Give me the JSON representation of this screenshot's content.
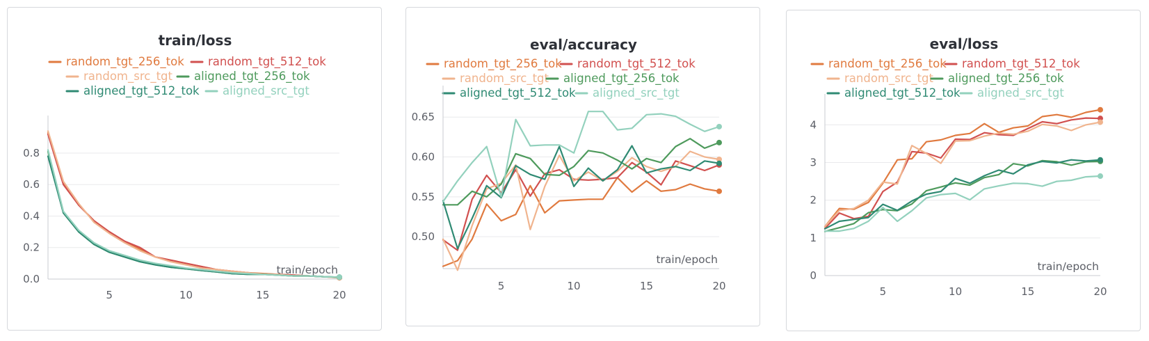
{
  "colors": {
    "random_tgt_256_tok": "#e07a3f",
    "random_tgt_512_tok": "#d1504f",
    "random_src_tgt": "#f0b48e",
    "aligned_tgt_256_tok": "#4e9a5c",
    "aligned_tgt_512_tok": "#2f8a73",
    "aligned_src_tgt": "#93d1bd"
  },
  "chart_data": [
    {
      "type": "line",
      "title": "train/loss",
      "xlabel": "train/epoch",
      "ylabel": "",
      "xlim": [
        1,
        20
      ],
      "ylim": [
        0,
        0.95
      ],
      "xticks": [
        5,
        10,
        15,
        20
      ],
      "yticks": [
        0,
        0.2,
        0.4,
        0.6,
        0.8
      ],
      "grid": true,
      "legend_position": "top",
      "x": [
        1,
        2,
        3,
        4,
        5,
        6,
        7,
        8,
        9,
        10,
        11,
        12,
        13,
        14,
        15,
        16,
        17,
        18,
        19,
        20
      ],
      "series": [
        {
          "name": "random_tgt_256_tok",
          "values": [
            0.93,
            0.61,
            0.47,
            0.37,
            0.3,
            0.24,
            0.19,
            0.14,
            0.12,
            0.1,
            0.08,
            0.06,
            0.05,
            0.04,
            0.035,
            0.03,
            0.025,
            0.02,
            0.015,
            0.008
          ]
        },
        {
          "name": "random_tgt_512_tok",
          "values": [
            0.92,
            0.6,
            0.47,
            0.37,
            0.3,
            0.24,
            0.2,
            0.14,
            0.12,
            0.1,
            0.08,
            0.06,
            0.05,
            0.04,
            0.03,
            0.03,
            0.025,
            0.02,
            0.015,
            0.01
          ]
        },
        {
          "name": "random_src_tgt",
          "values": [
            0.94,
            0.62,
            0.48,
            0.36,
            0.29,
            0.23,
            0.18,
            0.14,
            0.11,
            0.09,
            0.07,
            0.06,
            0.05,
            0.04,
            0.03,
            0.03,
            0.02,
            0.02,
            0.015,
            0.008
          ]
        },
        {
          "name": "aligned_tgt_256_tok",
          "values": [
            0.81,
            0.42,
            0.3,
            0.22,
            0.17,
            0.14,
            0.11,
            0.09,
            0.075,
            0.065,
            0.055,
            0.045,
            0.035,
            0.03,
            0.03,
            0.025,
            0.02,
            0.02,
            0.015,
            0.012
          ]
        },
        {
          "name": "aligned_tgt_512_tok",
          "values": [
            0.78,
            0.42,
            0.3,
            0.22,
            0.17,
            0.14,
            0.11,
            0.09,
            0.075,
            0.065,
            0.055,
            0.045,
            0.035,
            0.03,
            0.03,
            0.025,
            0.02,
            0.02,
            0.015,
            0.012
          ]
        },
        {
          "name": "aligned_src_tgt",
          "values": [
            0.82,
            0.43,
            0.31,
            0.23,
            0.18,
            0.15,
            0.12,
            0.1,
            0.085,
            0.07,
            0.06,
            0.05,
            0.04,
            0.035,
            0.03,
            0.025,
            0.02,
            0.02,
            0.015,
            0.012
          ]
        }
      ]
    },
    {
      "type": "line",
      "title": "eval/accuracy",
      "xlabel": "train/epoch",
      "ylabel": "",
      "xlim": [
        1,
        20
      ],
      "ylim": [
        0.46,
        0.672
      ],
      "xticks": [
        5,
        10,
        15,
        20
      ],
      "yticks": [
        0.5,
        0.55,
        0.6,
        0.65
      ],
      "grid": true,
      "legend_position": "top",
      "x": [
        1,
        2,
        3,
        4,
        5,
        6,
        7,
        8,
        9,
        10,
        11,
        12,
        13,
        14,
        15,
        16,
        17,
        18,
        19,
        20
      ],
      "series": [
        {
          "name": "random_tgt_256_tok",
          "values": [
            0.463,
            0.47,
            0.497,
            0.541,
            0.52,
            0.528,
            0.564,
            0.53,
            0.545,
            0.546,
            0.547,
            0.547,
            0.574,
            0.556,
            0.57,
            0.557,
            0.559,
            0.566,
            0.56,
            0.557
          ]
        },
        {
          "name": "random_tgt_512_tok",
          "values": [
            0.496,
            0.483,
            0.547,
            0.577,
            0.555,
            0.584,
            0.551,
            0.579,
            0.584,
            0.572,
            0.571,
            0.572,
            0.574,
            0.593,
            0.581,
            0.565,
            0.595,
            0.589,
            0.583,
            0.59
          ]
        },
        {
          "name": "random_src_tgt",
          "values": [
            0.497,
            0.458,
            0.514,
            0.56,
            0.567,
            0.59,
            0.509,
            0.563,
            0.602,
            0.57,
            0.581,
            0.57,
            0.582,
            0.599,
            0.588,
            0.582,
            0.588,
            0.607,
            0.6,
            0.597
          ]
        },
        {
          "name": "aligned_tgt_256_tok",
          "values": [
            0.54,
            0.54,
            0.557,
            0.55,
            0.566,
            0.604,
            0.598,
            0.578,
            0.577,
            0.588,
            0.608,
            0.605,
            0.596,
            0.585,
            0.598,
            0.593,
            0.613,
            0.623,
            0.611,
            0.618
          ]
        },
        {
          "name": "aligned_tgt_512_tok",
          "values": [
            0.545,
            0.485,
            0.523,
            0.564,
            0.549,
            0.589,
            0.578,
            0.572,
            0.613,
            0.563,
            0.586,
            0.57,
            0.584,
            0.614,
            0.58,
            0.585,
            0.588,
            0.583,
            0.595,
            0.592
          ]
        },
        {
          "name": "aligned_src_tgt",
          "values": [
            0.544,
            0.57,
            0.593,
            0.613,
            0.55,
            0.647,
            0.614,
            0.615,
            0.615,
            0.605,
            0.657,
            0.657,
            0.634,
            0.636,
            0.653,
            0.654,
            0.651,
            0.641,
            0.632,
            0.638
          ]
        }
      ]
    },
    {
      "type": "line",
      "title": "eval/loss",
      "xlabel": "train/epoch",
      "ylabel": "",
      "xlim": [
        1,
        20
      ],
      "ylim": [
        0,
        4.45
      ],
      "xticks": [
        5,
        10,
        15,
        20
      ],
      "yticks": [
        0,
        1,
        2,
        3,
        4
      ],
      "grid": true,
      "legend_position": "top",
      "x": [
        1,
        2,
        3,
        4,
        5,
        6,
        7,
        8,
        9,
        10,
        11,
        12,
        13,
        14,
        15,
        16,
        17,
        18,
        19,
        20
      ],
      "series": [
        {
          "name": "random_tgt_256_tok",
          "values": [
            1.3,
            1.78,
            1.76,
            1.94,
            2.45,
            3.07,
            3.1,
            3.55,
            3.6,
            3.72,
            3.77,
            4.03,
            3.8,
            3.92,
            3.97,
            4.22,
            4.27,
            4.2,
            4.33,
            4.4
          ]
        },
        {
          "name": "random_tgt_512_tok",
          "values": [
            1.25,
            1.66,
            1.51,
            1.57,
            2.23,
            2.48,
            3.29,
            3.25,
            3.12,
            3.62,
            3.61,
            3.79,
            3.74,
            3.72,
            3.9,
            4.08,
            4.03,
            4.13,
            4.18,
            4.17
          ]
        },
        {
          "name": "random_src_tgt",
          "values": [
            1.3,
            1.73,
            1.78,
            2.0,
            2.48,
            2.43,
            3.45,
            3.24,
            2.98,
            3.57,
            3.58,
            3.7,
            3.78,
            3.75,
            3.83,
            4.01,
            3.97,
            3.85,
            4.0,
            4.07
          ]
        },
        {
          "name": "aligned_tgt_256_tok",
          "values": [
            1.17,
            1.27,
            1.38,
            1.67,
            1.75,
            1.72,
            1.9,
            2.25,
            2.35,
            2.46,
            2.4,
            2.6,
            2.68,
            2.97,
            2.91,
            3.05,
            3.02,
            2.93,
            3.02,
            3.03
          ]
        },
        {
          "name": "aligned_tgt_512_tok",
          "values": [
            1.24,
            1.44,
            1.49,
            1.54,
            1.89,
            1.73,
            1.98,
            2.16,
            2.23,
            2.58,
            2.45,
            2.65,
            2.8,
            2.7,
            2.94,
            3.03,
            2.99,
            3.07,
            3.04,
            3.07
          ]
        },
        {
          "name": "aligned_src_tgt",
          "values": [
            1.18,
            1.18,
            1.25,
            1.44,
            1.81,
            1.44,
            1.72,
            2.06,
            2.15,
            2.18,
            2.01,
            2.3,
            2.38,
            2.45,
            2.44,
            2.37,
            2.5,
            2.53,
            2.62,
            2.64
          ]
        }
      ]
    }
  ]
}
